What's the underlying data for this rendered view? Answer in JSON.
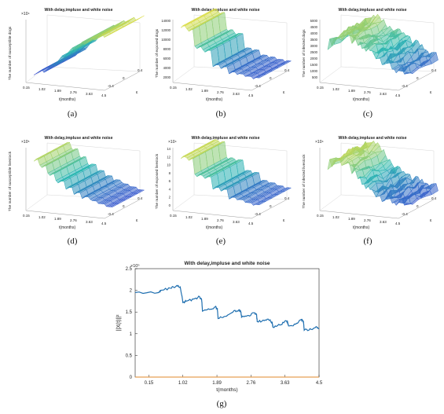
{
  "colors": {
    "surface_lo": "#3b3bd6",
    "surface_mid": "#27b7b0",
    "surface_hi": "#f2e23a",
    "line": "#1f6fb0",
    "axis": "#e08a2a"
  },
  "chart_data": [
    {
      "type": "surface",
      "id": "a",
      "title": "With delay,impluse and white noise",
      "caption": "(a)",
      "exponent": "×10⁴",
      "zlabel": "The number of susceptible dogs",
      "xlabel": "t(months)",
      "ylabel": "ε",
      "t_ticks": [
        "0.15",
        "1.02",
        "1.89",
        "2.76",
        "3.63",
        "4.5"
      ],
      "eps_ticks": [
        "-0.4",
        "0",
        "0.4"
      ],
      "z_ticks": [],
      "profile": [
        0.05,
        0.1,
        0.2,
        0.35,
        0.5,
        0.62,
        0.72,
        0.8,
        0.86,
        0.9
      ],
      "style": "sawtooth_up"
    },
    {
      "type": "surface",
      "id": "b",
      "title": "With delay,impluse and white noise",
      "caption": "(b)",
      "exponent": "",
      "zlabel": "The number of exposed dogs",
      "xlabel": "t(months)",
      "ylabel": "ε",
      "t_ticks": [
        "0.15",
        "1.02",
        "1.89",
        "2.76",
        "3.63",
        "4.5"
      ],
      "eps_ticks": [
        "-0.4",
        "0",
        "0.4"
      ],
      "z_ticks": [
        "2000",
        "4000",
        "6000",
        "8000",
        "10000",
        "12000",
        "14000"
      ],
      "profile": [
        0.95,
        0.9,
        0.6,
        0.55,
        0.3,
        0.28,
        0.2,
        0.18,
        0.15,
        0.14
      ],
      "style": "steps_down"
    },
    {
      "type": "surface",
      "id": "c",
      "title": "With delay,impluse and white noise",
      "caption": "(c)",
      "exponent": "",
      "zlabel": "The number of infected dogs",
      "xlabel": "t(months)",
      "ylabel": "ε",
      "t_ticks": [
        "0.15",
        "1.02",
        "1.89",
        "2.76",
        "3.63",
        "4.5"
      ],
      "eps_ticks": [
        "-0.4",
        "0",
        "0.4"
      ],
      "z_ticks": [
        "500",
        "1000",
        "1500",
        "2000",
        "2500",
        "3000",
        "3500",
        "4000",
        "4500",
        "5000"
      ],
      "profile": [
        0.6,
        0.75,
        0.8,
        0.7,
        0.6,
        0.55,
        0.45,
        0.35,
        0.25,
        0.2
      ],
      "style": "noisy"
    },
    {
      "type": "surface",
      "id": "d",
      "title": "With delay,impluse and white noise",
      "caption": "(d)",
      "exponent": "×10⁵",
      "zlabel": "The number of susceptible livestock",
      "xlabel": "t(months)",
      "ylabel": "ε",
      "t_ticks": [
        "0.15",
        "1.02",
        "1.89",
        "2.76",
        "3.63",
        "4.5"
      ],
      "eps_ticks": [
        "-0.4",
        "0",
        "0.4"
      ],
      "z_ticks": [],
      "profile": [
        0.85,
        0.75,
        0.62,
        0.5,
        0.4,
        0.32,
        0.26,
        0.2,
        0.16,
        0.12
      ],
      "style": "steps_down"
    },
    {
      "type": "surface",
      "id": "e",
      "title": "With delay,impluse and white noise",
      "caption": "(e)",
      "exponent": "×10⁴",
      "zlabel": "The number of exposed livestock",
      "xlabel": "t(months)",
      "ylabel": "ε",
      "t_ticks": [
        "0.15",
        "1.02",
        "1.89",
        "2.76",
        "3.63",
        "4.5"
      ],
      "eps_ticks": [
        "-0.4",
        "0",
        "0.4"
      ],
      "z_ticks": [
        "0",
        "2",
        "4",
        "6",
        "8",
        "10",
        "12",
        "14"
      ],
      "profile": [
        0.9,
        0.88,
        0.6,
        0.58,
        0.4,
        0.38,
        0.25,
        0.22,
        0.18,
        0.16
      ],
      "style": "steps_down"
    },
    {
      "type": "surface",
      "id": "f",
      "title": "With delay,impluse and white noise",
      "caption": "(f)",
      "exponent": "×10⁴",
      "zlabel": "The number of infected livestock",
      "xlabel": "t(months)",
      "ylabel": "ε",
      "t_ticks": [
        "0.15",
        "1.02",
        "1.89",
        "2.76",
        "3.63",
        "4.5"
      ],
      "eps_ticks": [
        "-0.4",
        "0",
        "0.4"
      ],
      "z_ticks": [],
      "profile": [
        0.75,
        0.85,
        0.8,
        0.65,
        0.45,
        0.35,
        0.28,
        0.22,
        0.18,
        0.15
      ],
      "style": "noisy"
    },
    {
      "type": "line",
      "id": "g",
      "title": "With delay,impluse and white noise",
      "caption": "(g)",
      "exponent": "×10⁵",
      "xlabel": "t(months)",
      "ylabel": "||X(t)||²",
      "x_ticks": [
        "0.15",
        "1.02",
        "1.89",
        "2.76",
        "3.63",
        "4.5"
      ],
      "y_ticks": [
        "0",
        "0.5",
        "1",
        "1.5",
        "2",
        "2.5"
      ],
      "xlim": [
        -0.2,
        4.5
      ],
      "ylim": [
        0,
        2.5
      ],
      "series": [
        {
          "values": [
            [
              -0.2,
              1.95
            ],
            [
              0.4,
              1.95
            ],
            [
              0.45,
              2.0
            ],
            [
              0.7,
              2.05
            ],
            [
              0.85,
              2.1
            ],
            [
              0.95,
              2.08
            ],
            [
              1.02,
              1.72
            ],
            [
              1.1,
              1.75
            ],
            [
              1.3,
              1.8
            ],
            [
              1.45,
              1.85
            ],
            [
              1.5,
              1.78
            ],
            [
              1.52,
              1.52
            ],
            [
              1.7,
              1.56
            ],
            [
              1.85,
              1.62
            ],
            [
              1.9,
              1.58
            ],
            [
              1.92,
              1.35
            ],
            [
              2.1,
              1.4
            ],
            [
              2.3,
              1.5
            ],
            [
              2.45,
              1.55
            ],
            [
              2.5,
              1.5
            ],
            [
              2.52,
              1.38
            ],
            [
              2.7,
              1.42
            ],
            [
              2.85,
              1.48
            ],
            [
              2.9,
              1.45
            ],
            [
              2.92,
              1.28
            ],
            [
              3.1,
              1.3
            ],
            [
              3.25,
              1.32
            ],
            [
              3.3,
              1.25
            ],
            [
              3.32,
              1.15
            ],
            [
              3.5,
              1.2
            ],
            [
              3.65,
              1.3
            ],
            [
              3.7,
              1.25
            ],
            [
              3.72,
              1.18
            ],
            [
              3.9,
              1.22
            ],
            [
              4.05,
              1.33
            ],
            [
              4.1,
              1.28
            ],
            [
              4.12,
              1.08
            ],
            [
              4.3,
              1.1
            ],
            [
              4.45,
              1.15
            ],
            [
              4.5,
              1.12
            ]
          ]
        }
      ]
    }
  ]
}
